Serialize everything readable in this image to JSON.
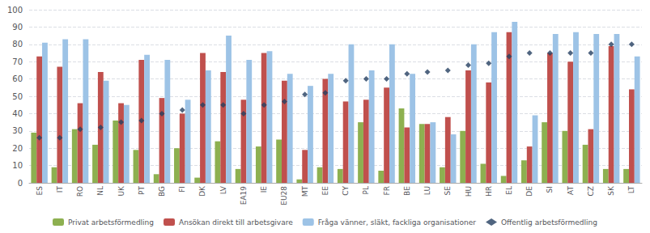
{
  "chart_data": {
    "type": "bar",
    "categories": [
      "ES",
      "IT",
      "RO",
      "NL",
      "UK",
      "PT",
      "BG",
      "FI",
      "DK",
      "LV",
      "EA19",
      "IE",
      "EU28",
      "MT",
      "EE",
      "CY",
      "PL",
      "FR",
      "BE",
      "LU",
      "SE",
      "HU",
      "HR",
      "EL",
      "DE",
      "SI",
      "AT",
      "CZ",
      "SK",
      "LT"
    ],
    "series": [
      {
        "name": "Privat arbetsförmedling",
        "type": "bar",
        "color": "#8db050",
        "values": [
          29,
          9,
          31,
          22,
          36,
          19,
          5,
          20,
          3,
          24,
          8,
          21,
          25,
          2,
          9,
          8,
          35,
          7,
          43,
          34,
          9,
          30,
          11,
          4,
          13,
          35,
          30,
          22,
          8,
          8
        ]
      },
      {
        "name": "Ansökan direkt till arbetsgivare",
        "type": "bar",
        "color": "#c0504d",
        "values": [
          73,
          67,
          46,
          64,
          46,
          71,
          49,
          40,
          75,
          64,
          48,
          75,
          59,
          19,
          60,
          47,
          48,
          55,
          32,
          34,
          38,
          65,
          58,
          87,
          21,
          75,
          70,
          31,
          79,
          54
        ]
      },
      {
        "name": "Fråga vänner, släkt, fackliga organisationer",
        "type": "bar",
        "color": "#9dc3e6",
        "values": [
          81,
          83,
          83,
          59,
          45,
          74,
          71,
          48,
          65,
          85,
          71,
          76,
          63,
          56,
          63,
          80,
          65,
          80,
          63,
          35,
          28,
          80,
          87,
          93,
          39,
          86,
          87,
          86,
          86,
          73
        ]
      },
      {
        "name": "Offentlig arbetsförmedling",
        "type": "scatter",
        "marker": "diamond",
        "color": "#243f60",
        "values": [
          26,
          26,
          31,
          32,
          35,
          36,
          40,
          42,
          45,
          45,
          40,
          45,
          47,
          51,
          52,
          59,
          60,
          60,
          63,
          64,
          65,
          68,
          69,
          73,
          75,
          75,
          75,
          75,
          80,
          80
        ]
      }
    ],
    "ylim": [
      0,
      100
    ],
    "yticks": [
      0,
      10,
      20,
      30,
      40,
      50,
      60,
      70,
      80,
      90,
      100
    ],
    "grid": true,
    "legend": "bottom"
  }
}
